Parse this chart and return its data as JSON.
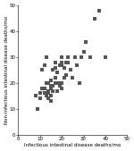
{
  "x_data": [
    8,
    9,
    10,
    10,
    11,
    11,
    12,
    12,
    12,
    13,
    13,
    13,
    14,
    14,
    14,
    14,
    15,
    15,
    15,
    15,
    15,
    16,
    16,
    16,
    17,
    17,
    17,
    17,
    18,
    18,
    18,
    19,
    19,
    19,
    20,
    20,
    20,
    20,
    20,
    21,
    21,
    22,
    22,
    23,
    23,
    24,
    25,
    26,
    27,
    28,
    29,
    30,
    31,
    33,
    35,
    37,
    40
  ],
  "y_data": [
    15,
    10,
    14,
    16,
    18,
    25,
    16,
    18,
    27,
    15,
    20,
    30,
    14,
    16,
    17,
    20,
    13,
    15,
    18,
    19,
    21,
    17,
    19,
    25,
    20,
    22,
    26,
    28,
    17,
    20,
    24,
    19,
    20,
    27,
    18,
    20,
    27,
    28,
    30,
    22,
    26,
    23,
    28,
    28,
    30,
    25,
    22,
    30,
    27,
    20,
    30,
    32,
    36,
    30,
    45,
    48,
    30
  ],
  "xlabel": "Infectious intestinal disease deaths/mo",
  "ylabel": "Non-infectious intestinal disease deaths/mo",
  "xlim": [
    0,
    50
  ],
  "ylim": [
    0,
    50
  ],
  "xticks": [
    0,
    10,
    20,
    30,
    40,
    50
  ],
  "yticks": [
    0,
    10,
    20,
    30,
    40,
    50
  ],
  "marker": "s",
  "marker_s": 2.5,
  "marker_color": "#555555",
  "bg_color": "#ffffff",
  "tick_labelsize": 4,
  "xlabel_fontsize": 4,
  "ylabel_fontsize": 4
}
